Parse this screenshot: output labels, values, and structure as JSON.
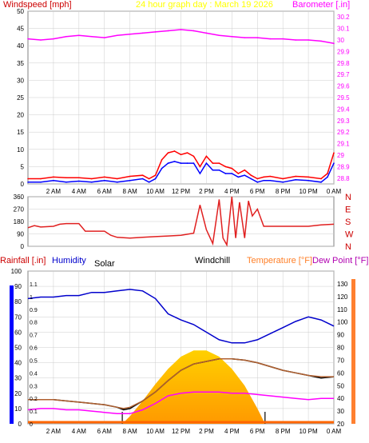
{
  "header": {
    "windspeed_label": "Windspeed [mph]",
    "title": "24 hour graph day : March 19 2026",
    "barometer_label": "Barometer [.in]"
  },
  "labels_bottom": {
    "rainfall": "Rainfall [.in]",
    "humidity": "Humidity",
    "solar": "Solar",
    "windchill": "Windchill",
    "temperature": "Temperature [°F]",
    "dewpoint": "Dew Point [°F]"
  },
  "colors": {
    "bg": "#ffffff",
    "frame": "#808080",
    "grid": "#cccccc",
    "windspeed": "#ff0000",
    "windgust": "#0000ff",
    "barometer": "#ff00ff",
    "title": "#ffff00",
    "direction": "#e02020",
    "humidity": "#0000cc",
    "temperature": "#b06030",
    "dewpoint": "#ff00ff",
    "windchill": "#000000",
    "solar_outer": "#ffd000",
    "solar_inner": "#ff9900",
    "rain_axis": "#0000ff",
    "temp_axis": "#ff8030"
  },
  "time_ticks": [
    "2 AM",
    "4 AM",
    "6 AM",
    "8 AM",
    "10 AM",
    "12 PM",
    "2 PM",
    "4 PM",
    "6 PM",
    "8 PM",
    "10 PM",
    "0 AM"
  ],
  "chart_data": [
    {
      "type": "line",
      "name": "wind_baro",
      "x_unit": "hour",
      "xlim": [
        0,
        24
      ],
      "ylim_left": [
        0,
        50
      ],
      "yticks_left": [
        0,
        5,
        10,
        15,
        20,
        25,
        30,
        35,
        40,
        45,
        50
      ],
      "ylim_right": [
        28.75,
        30.25
      ],
      "yticks_right": [
        "28.8",
        "28.9",
        "29",
        "29.1",
        "29.2",
        "29.3",
        "29.4",
        "29.5",
        "29.6",
        "29.7",
        "29.8",
        "29.9",
        "30",
        "30.1",
        "30.2"
      ],
      "series": [
        {
          "name": "Windspeed",
          "axis": "left",
          "x": [
            0,
            1,
            2,
            3,
            4,
            5,
            6,
            7,
            8,
            9,
            9.5,
            10,
            10.5,
            11,
            11.5,
            12,
            12.5,
            13,
            13.5,
            14,
            14.5,
            15,
            15.5,
            16,
            16.5,
            17,
            17.5,
            18,
            18.5,
            19,
            20,
            21,
            22,
            23,
            23.5,
            24
          ],
          "y": [
            1.5,
            1.5,
            2,
            1.8,
            1.8,
            1.5,
            2,
            1.5,
            2.2,
            2.5,
            1.5,
            2.5,
            7,
            9,
            9.5,
            8.5,
            9,
            8,
            5,
            8,
            6,
            6,
            5,
            4.5,
            3,
            4,
            2.5,
            1.5,
            2,
            2.2,
            1.5,
            2.2,
            2,
            1.5,
            3,
            9
          ]
        },
        {
          "name": "Windgust",
          "axis": "left",
          "x": [
            0,
            1,
            2,
            3,
            4,
            5,
            6,
            7,
            8,
            9,
            9.5,
            10,
            10.5,
            11,
            11.5,
            12,
            12.5,
            13,
            13.5,
            14,
            14.5,
            15,
            15.5,
            16,
            16.5,
            17,
            17.5,
            18,
            18.5,
            19,
            20,
            21,
            22,
            23,
            23.5,
            24
          ],
          "y": [
            0.5,
            0.5,
            1,
            0.5,
            0.8,
            0.5,
            1,
            0.5,
            1,
            1.5,
            0.5,
            1.5,
            4.5,
            6,
            6.5,
            6,
            6,
            6,
            3,
            6,
            4,
            4,
            3,
            3,
            2,
            2.5,
            1.5,
            0.5,
            1,
            1,
            0.5,
            1.2,
            1,
            0.5,
            2,
            6
          ]
        },
        {
          "name": "Barometer",
          "axis": "right",
          "x": [
            0,
            1,
            2,
            3,
            4,
            5,
            6,
            7,
            8,
            9,
            10,
            11,
            12,
            13,
            14,
            15,
            16,
            17,
            18,
            19,
            20,
            21,
            22,
            23,
            24
          ],
          "y": [
            30.01,
            30,
            30.01,
            30.03,
            30.04,
            30.03,
            30.02,
            30.04,
            30.05,
            30.06,
            30.07,
            30.08,
            30.09,
            30.08,
            30.06,
            30.04,
            30.03,
            30.02,
            30.02,
            30.01,
            30.01,
            30,
            30,
            29.99,
            29.97
          ]
        }
      ]
    },
    {
      "type": "line",
      "name": "wind_direction",
      "x_unit": "hour",
      "xlim": [
        0,
        24
      ],
      "ylim": [
        0,
        360
      ],
      "yticks": [
        0,
        90,
        180,
        270,
        360
      ],
      "yticklabels": [
        "0",
        "90",
        "180",
        "270",
        "360"
      ],
      "compass": [
        "N",
        "W",
        "S",
        "E",
        "N"
      ],
      "series": [
        {
          "name": "Direction",
          "x": [
            0,
            0.5,
            1,
            2,
            2.5,
            3,
            4,
            4.5,
            5,
            6,
            6.5,
            7,
            8,
            9,
            10,
            11,
            12,
            13,
            13.5,
            14,
            14.5,
            15,
            15.3,
            15.6,
            16,
            16.3,
            16.6,
            17,
            17.3,
            17.6,
            18,
            18.5,
            19,
            20,
            21,
            22,
            23,
            24
          ],
          "y": [
            135,
            150,
            140,
            145,
            160,
            165,
            165,
            110,
            110,
            110,
            80,
            65,
            60,
            65,
            70,
            75,
            80,
            95,
            300,
            120,
            20,
            340,
            60,
            10,
            360,
            60,
            320,
            60,
            330,
            220,
            270,
            145,
            145,
            145,
            145,
            145,
            155,
            160
          ]
        }
      ]
    },
    {
      "type": "area",
      "name": "temp_humidity_solar",
      "x_unit": "hour",
      "xlim": [
        0,
        24
      ],
      "ylim_left": [
        0,
        100
      ],
      "yticks_left": [
        0,
        10,
        20,
        30,
        40,
        50,
        60,
        70,
        80,
        90,
        100
      ],
      "ylim_rain": [
        0,
        1.2
      ],
      "yticks_rain": [
        "0",
        "0.1",
        "0.2",
        "0.3",
        "0.4",
        "0.5",
        "0.6",
        "0.7",
        "0.8",
        "0.9",
        "1",
        "1.1"
      ],
      "ylim_right": [
        20,
        140
      ],
      "yticks_right": [
        "20",
        "30",
        "40",
        "50",
        "60",
        "70",
        "80",
        "90",
        "100",
        "110",
        "120",
        "130"
      ],
      "series": [
        {
          "name": "Humidity",
          "axis": "left",
          "x": [
            0,
            1,
            2,
            3,
            4,
            5,
            6,
            7,
            8,
            9,
            10,
            11,
            12,
            13,
            14,
            15,
            16,
            17,
            18,
            19,
            20,
            21,
            22,
            23,
            23.5,
            24
          ],
          "y": [
            82,
            83,
            83,
            84,
            84,
            86,
            86,
            87,
            88,
            87,
            82,
            72,
            68,
            65,
            60,
            55,
            53,
            53,
            55,
            59,
            63,
            67,
            70,
            68,
            66,
            64
          ]
        },
        {
          "name": "Temperature",
          "axis": "right",
          "x": [
            0,
            1,
            2,
            3,
            4,
            5,
            6,
            7,
            7.5,
            8,
            9,
            10,
            11,
            12,
            13,
            14,
            15,
            16,
            17,
            18,
            19,
            20,
            21,
            22,
            23,
            24
          ],
          "y": [
            39,
            39,
            39,
            38,
            37,
            36,
            35,
            33,
            32,
            33,
            38,
            45,
            54,
            62,
            67,
            69,
            71,
            71,
            70,
            68,
            65,
            62,
            60,
            58,
            57,
            57
          ]
        },
        {
          "name": "Dew Point",
          "axis": "right",
          "x": [
            0,
            1,
            2,
            3,
            4,
            5,
            6,
            7,
            8,
            9,
            10,
            11,
            12,
            13,
            14,
            15,
            16,
            17,
            18,
            19,
            20,
            21,
            22,
            23,
            24
          ],
          "y": [
            31,
            32,
            32,
            31,
            31,
            30,
            29,
            28,
            28,
            31,
            36,
            42,
            44,
            45,
            45,
            45,
            44,
            44,
            43,
            42,
            41,
            40,
            39,
            40,
            40
          ]
        },
        {
          "name": "Windchill",
          "axis": "right",
          "x": [
            0,
            1,
            2,
            3,
            4,
            5,
            6,
            7,
            7.5,
            8,
            9,
            10,
            11,
            12,
            13,
            14,
            15,
            16,
            17,
            18,
            19,
            20,
            21,
            22,
            23,
            24
          ],
          "y": [
            39,
            39,
            39,
            38,
            37,
            36,
            35,
            33,
            31,
            32,
            38,
            45,
            54,
            62,
            67,
            69,
            71,
            71,
            70,
            68,
            65,
            62,
            60,
            58,
            56,
            57
          ]
        },
        {
          "name": "Solar",
          "axis": "left",
          "x": [
            7.4,
            8,
            9,
            10,
            11,
            12,
            13,
            14,
            15,
            16,
            17,
            18,
            18.6
          ],
          "y": [
            0,
            5,
            15,
            26,
            36,
            44,
            48,
            48,
            44,
            36,
            25,
            10,
            0
          ]
        },
        {
          "name": "Rainfall",
          "axis": "rain",
          "x": [
            0,
            24
          ],
          "y": [
            0,
            0
          ]
        }
      ],
      "markers": [
        {
          "name": "sunrise",
          "x": 7.4
        },
        {
          "name": "sunset",
          "x": 18.6
        }
      ]
    }
  ]
}
